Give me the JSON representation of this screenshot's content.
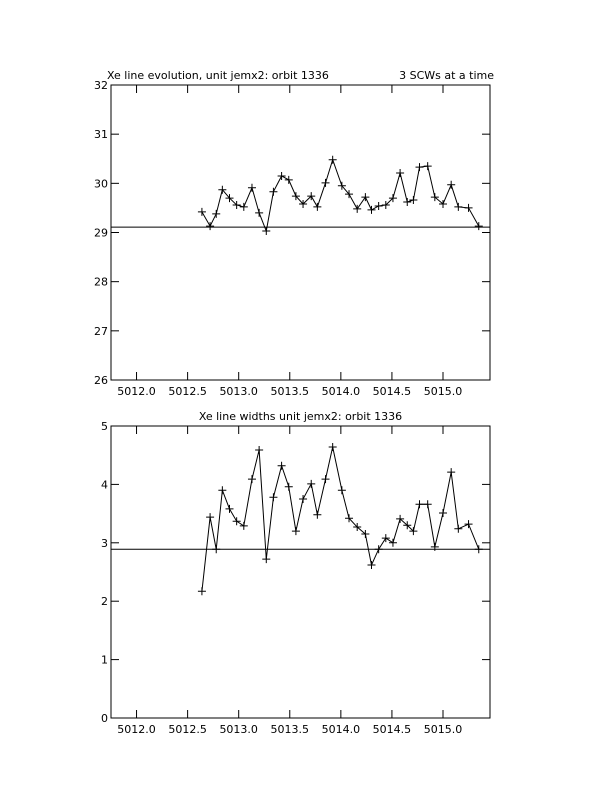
{
  "chart_data": [
    {
      "type": "line",
      "title": "Xe line evolution, unit jemx2: orbit 1336",
      "annotation": "3 SCWs at a time",
      "x": [
        5012.64,
        5012.72,
        5012.78,
        5012.84,
        5012.91,
        5012.98,
        5013.05,
        5013.13,
        5013.2,
        5013.27,
        5013.34,
        5013.42,
        5013.49,
        5013.56,
        5013.63,
        5013.71,
        5013.77,
        5013.85,
        5013.92,
        5014.01,
        5014.08,
        5014.16,
        5014.24,
        5014.3,
        5014.37,
        5014.44,
        5014.51,
        5014.58,
        5014.65,
        5014.71,
        5014.77,
        5014.85,
        5014.92,
        5015.0,
        5015.08,
        5015.15,
        5015.25,
        5015.35
      ],
      "values": [
        29.42,
        29.13,
        29.38,
        29.87,
        29.7,
        29.56,
        29.52,
        29.91,
        29.4,
        29.03,
        29.83,
        30.15,
        30.07,
        29.74,
        29.58,
        29.74,
        29.52,
        30.01,
        30.48,
        29.95,
        29.78,
        29.48,
        29.72,
        29.46,
        29.54,
        29.56,
        29.7,
        30.21,
        29.62,
        29.66,
        30.33,
        30.35,
        29.72,
        29.58,
        29.97,
        29.52,
        29.5,
        29.13
      ],
      "color": "#000000",
      "hline": 29.11,
      "xlim": [
        5011.75,
        5015.46
      ],
      "xticks": [
        {
          "value": 5012,
          "label": "5012.0"
        },
        5012.5,
        {
          "value": 5013,
          "label": "5013.0"
        },
        5013.5,
        {
          "value": 5014,
          "label": "5014.0"
        },
        5014.5,
        {
          "value": 5015,
          "label": "5015.0"
        }
      ],
      "ylim": [
        26,
        32
      ],
      "yticks": [
        26,
        27,
        28,
        29,
        30,
        31,
        32
      ]
    },
    {
      "type": "line",
      "title": "Xe line widths unit jemx2: orbit 1336",
      "x": [
        5012.64,
        5012.72,
        5012.78,
        5012.84,
        5012.91,
        5012.98,
        5013.05,
        5013.13,
        5013.2,
        5013.27,
        5013.34,
        5013.42,
        5013.49,
        5013.56,
        5013.63,
        5013.71,
        5013.77,
        5013.85,
        5013.92,
        5014.01,
        5014.08,
        5014.16,
        5014.24,
        5014.3,
        5014.37,
        5014.44,
        5014.51,
        5014.58,
        5014.65,
        5014.71,
        5014.77,
        5014.85,
        5014.92,
        5015.0,
        5015.08,
        5015.15,
        5015.25,
        5015.35
      ],
      "values": [
        2.17,
        3.44,
        2.89,
        3.9,
        3.58,
        3.37,
        3.29,
        4.09,
        4.59,
        2.72,
        3.78,
        4.32,
        3.96,
        3.2,
        3.75,
        4.01,
        3.48,
        4.09,
        4.64,
        3.9,
        3.42,
        3.27,
        3.15,
        2.62,
        2.89,
        3.08,
        3.0,
        3.41,
        3.3,
        3.2,
        3.66,
        3.66,
        2.93,
        3.51,
        4.21,
        3.24,
        3.32,
        2.89
      ],
      "color": "#000000",
      "hline": 2.89,
      "xlim": [
        5011.75,
        5015.46
      ],
      "xticks": [
        {
          "value": 5012,
          "label": "5012.0"
        },
        5012.5,
        {
          "value": 5013,
          "label": "5013.0"
        },
        5013.5,
        {
          "value": 5014,
          "label": "5014.0"
        },
        5014.5,
        {
          "value": 5015,
          "label": "5015.0"
        }
      ],
      "ylim": [
        0,
        5
      ],
      "yticks": [
        0,
        1,
        2,
        3,
        4,
        5
      ]
    }
  ]
}
